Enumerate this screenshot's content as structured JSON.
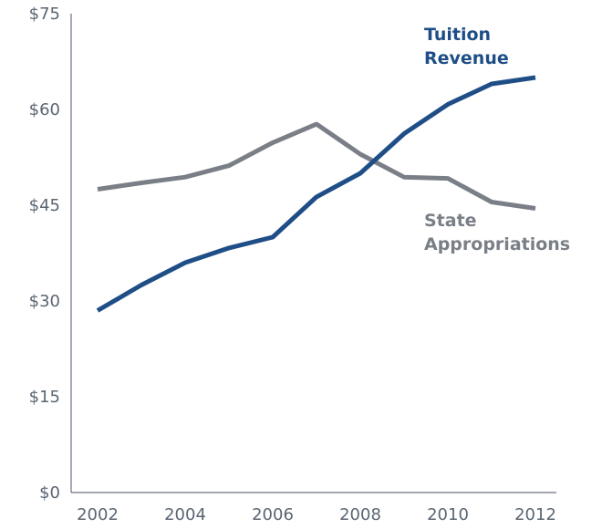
{
  "chart_data": {
    "type": "line",
    "x": [
      2002,
      2003,
      2004,
      2005,
      2006,
      2007,
      2008,
      2009,
      2010,
      2011,
      2012
    ],
    "series": [
      {
        "name": "Tuition Revenue",
        "label_lines": [
          "Tuition",
          "Revenue"
        ],
        "color": "#1f4e87",
        "values": [
          28.5,
          32.5,
          36.0,
          38.3,
          40.0,
          46.3,
          50.0,
          56.2,
          60.8,
          64.0,
          65.0
        ]
      },
      {
        "name": "State Appropriations",
        "label_lines": [
          "State",
          "Appropriations"
        ],
        "color": "#7a7f87",
        "values": [
          47.5,
          48.5,
          49.4,
          51.2,
          54.8,
          57.7,
          53.0,
          49.4,
          49.2,
          45.5,
          44.5
        ]
      }
    ],
    "x_ticks": [
      "2002",
      "2004",
      "2006",
      "2008",
      "2010",
      "2012"
    ],
    "y_ticks": [
      "$0",
      "$15",
      "$30",
      "$45",
      "$60",
      "$75"
    ],
    "ylim": [
      0,
      75
    ],
    "xlim": [
      2002,
      2012
    ],
    "grid": false,
    "legend": "direct-labels"
  }
}
